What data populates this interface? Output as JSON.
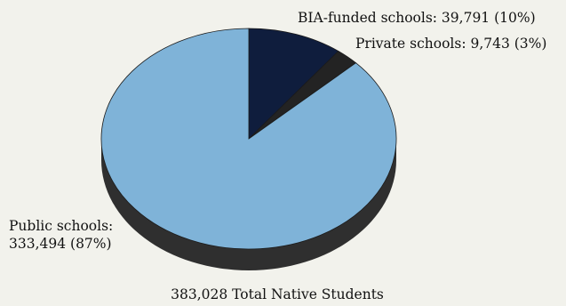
{
  "chart_data": {
    "type": "pie",
    "title": "",
    "caption": "383,028 Total Native Students",
    "series": [
      {
        "name": "",
        "slices": [
          {
            "label": "BIA-funded schools: 39,791 (10%)",
            "value": 39791,
            "percent": 10,
            "color": "#0f1d3d"
          },
          {
            "label": "Private schools: 9,743 (3%)",
            "value": 9743,
            "percent": 3,
            "color": "#232323"
          },
          {
            "label": "Public schools:",
            "label_line2": "333,494 (87%)",
            "value": 333494,
            "percent": 87,
            "color": "#7fb3d8"
          }
        ]
      }
    ],
    "colors": {
      "edge": "#2f2f2f",
      "edge_dark": "#1a1a1a",
      "background": "#f2f2ec"
    }
  }
}
